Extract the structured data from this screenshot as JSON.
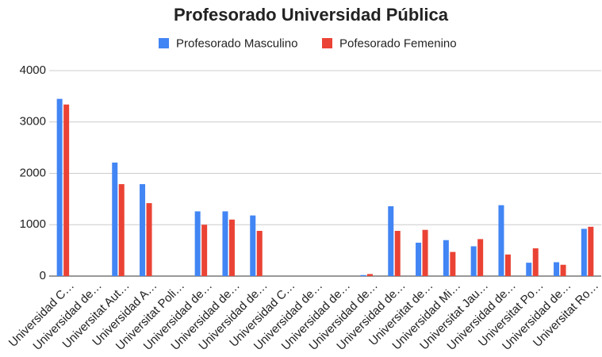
{
  "chart_data": {
    "type": "bar",
    "title": "Profesorado Universidad Pública",
    "categories": [
      "Universidad C…",
      "Universidad de…",
      "Universitat Aut…",
      "Universidad A…",
      "Universitat Poli…",
      "Universidad de…",
      "Universidad de…",
      "Universidad de…",
      "Universidad C…",
      "Universidad de…",
      "Universidad de…",
      "Universidad de…",
      "Universidad de…",
      "Universitat de…",
      "Universidad Mi…",
      "Universitat Jau…",
      "Universidad de…",
      "Universitat Po…",
      "Universidad de…",
      "Universitat Ro…"
    ],
    "series": [
      {
        "name": "Profesorado Masculino",
        "color": "#4285f4",
        "values": [
          3450,
          0,
          2210,
          1790,
          0,
          1260,
          1260,
          1180,
          0,
          0,
          0,
          20,
          1360,
          650,
          700,
          580,
          1380,
          260,
          270,
          920
        ]
      },
      {
        "name": "Pofesorado Femenino",
        "color": "#ea4335",
        "values": [
          3340,
          0,
          1790,
          1420,
          0,
          1000,
          1100,
          880,
          0,
          0,
          0,
          40,
          880,
          900,
          470,
          720,
          420,
          540,
          220,
          960
        ]
      }
    ],
    "ylim": [
      0,
      4000
    ],
    "yticks": [
      0,
      1000,
      2000,
      3000,
      4000
    ],
    "grid": true,
    "legend": "top"
  }
}
